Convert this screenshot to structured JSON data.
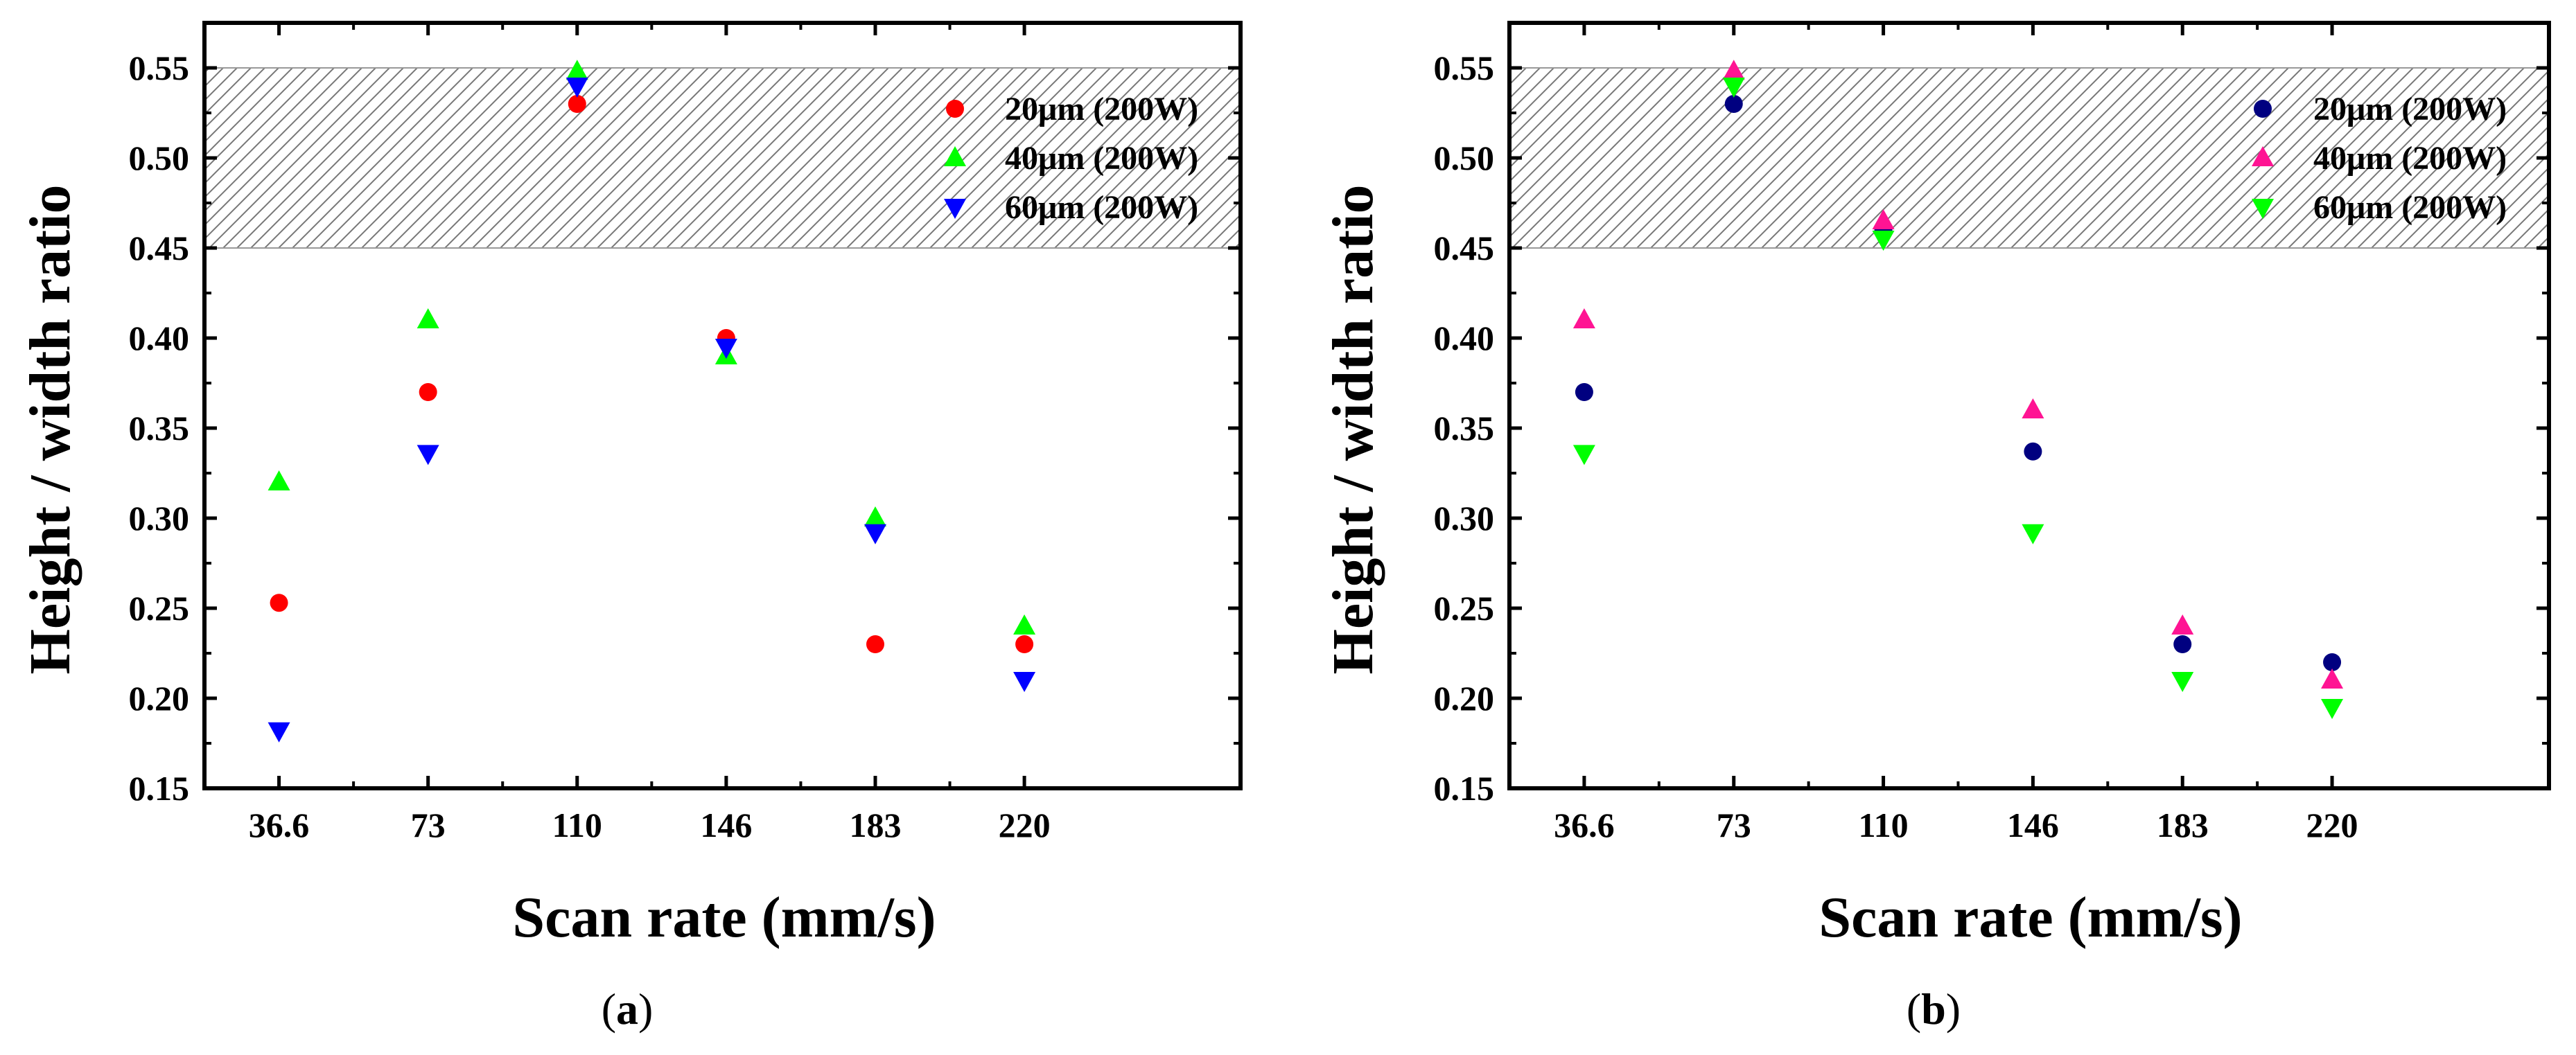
{
  "chart_data": [
    {
      "type": "scatter",
      "caption_letter": "a",
      "xlabel": "Scan rate (mm/s)",
      "ylabel": "Height / width ratio",
      "categories": [
        "36.6",
        "73",
        "110",
        "146",
        "183",
        "220"
      ],
      "yticks": [
        "0.15",
        "0.20",
        "0.25",
        "0.30",
        "0.35",
        "0.40",
        "0.45",
        "0.50",
        "0.55"
      ],
      "ylim": [
        0.15,
        0.575
      ],
      "shaded_band": [
        0.45,
        0.55
      ],
      "legend_position": "top-right",
      "series": [
        {
          "name": "20μm (200W)",
          "marker": "circle",
          "color": "#ff0000",
          "values": [
            0.253,
            0.37,
            0.53,
            0.4,
            0.23,
            0.23
          ]
        },
        {
          "name": "40μm (200W)",
          "marker": "triangle-up",
          "color": "#00ff00",
          "values": [
            0.32,
            0.41,
            0.548,
            0.39,
            0.3,
            0.24
          ]
        },
        {
          "name": "60μm (200W)",
          "marker": "triangle-down",
          "color": "#0000ff",
          "values": [
            0.182,
            0.336,
            0.54,
            0.395,
            0.292,
            0.21
          ]
        }
      ]
    },
    {
      "type": "scatter",
      "caption_letter": "b",
      "xlabel": "Scan rate (mm/s)",
      "ylabel": "Height / width ratio",
      "categories": [
        "36.6",
        "73",
        "110",
        "146",
        "183",
        "220"
      ],
      "yticks": [
        "0.15",
        "0.20",
        "0.25",
        "0.30",
        "0.35",
        "0.40",
        "0.45",
        "0.50",
        "0.55"
      ],
      "ylim": [
        0.15,
        0.575
      ],
      "shaded_band": [
        0.45,
        0.55
      ],
      "legend_position": "top-right",
      "series": [
        {
          "name": "20μm (200W)",
          "marker": "circle",
          "color": "#000080",
          "values": [
            0.37,
            0.53,
            0.46,
            0.337,
            0.23,
            0.22
          ]
        },
        {
          "name": "40μm (200W)",
          "marker": "triangle-up",
          "color": "#ff1493",
          "values": [
            0.41,
            0.548,
            0.465,
            0.36,
            0.24,
            0.21
          ]
        },
        {
          "name": "60μm (200W)",
          "marker": "triangle-down",
          "color": "#00ff00",
          "values": [
            0.336,
            0.54,
            0.455,
            0.292,
            0.21,
            0.195
          ]
        }
      ]
    }
  ]
}
